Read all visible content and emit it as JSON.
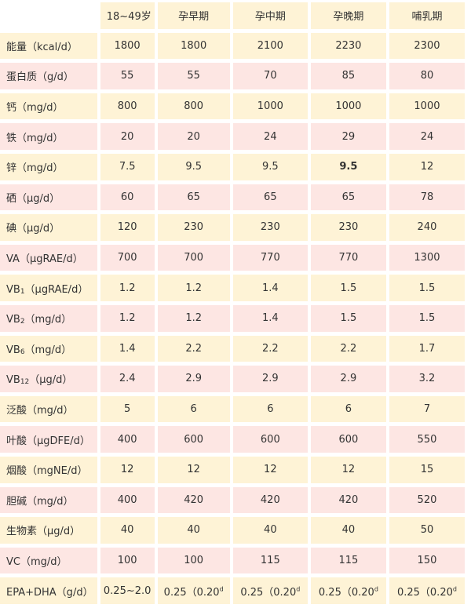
{
  "table": {
    "headers": [
      "",
      "18~49岁",
      "孕早期",
      "孕中期",
      "孕晚期",
      "哺乳期"
    ],
    "rows": [
      {
        "label": "能量（kcal/d）",
        "values": [
          "1800",
          "1800",
          "2100",
          "2230",
          "2300"
        ]
      },
      {
        "label": "蛋白质（g/d）",
        "values": [
          "55",
          "55",
          "70",
          "85",
          "80"
        ]
      },
      {
        "label": "钙（mg/d）",
        "values": [
          "800",
          "800",
          "1000",
          "1000",
          "1000"
        ]
      },
      {
        "label": "铁（mg/d）",
        "values": [
          "20",
          "20",
          "24",
          "29",
          "24"
        ]
      },
      {
        "label": "锌（mg/d）",
        "values": [
          "7.5",
          "9.5",
          "9.5",
          "9.5",
          "12"
        ]
      },
      {
        "label": "硒（μg/d）",
        "values": [
          "60",
          "65",
          "65",
          "65",
          "78"
        ]
      },
      {
        "label": "碘（μg/d）",
        "values": [
          "120",
          "230",
          "230",
          "230",
          "240"
        ]
      },
      {
        "label": "VA（μgRAE/d）",
        "values": [
          "700",
          "700",
          "770",
          "770",
          "1300"
        ]
      },
      {
        "label_main": "VB",
        "label_sub": "1",
        "label_rest": "（μgRAE/d）",
        "values": [
          "1.2",
          "1.2",
          "1.4",
          "1.5",
          "1.5"
        ]
      },
      {
        "label_main": "VB",
        "label_sub": "2",
        "label_rest": "（mg/d）",
        "values": [
          "1.2",
          "1.2",
          "1.4",
          "1.5",
          "1.5"
        ]
      },
      {
        "label_main": "VB",
        "label_sub": "6",
        "label_rest": "（mg/d）",
        "values": [
          "1.4",
          "2.2",
          "2.2",
          "2.2",
          "1.7"
        ]
      },
      {
        "label_main": "VB",
        "label_sub": "12",
        "label_rest": "（μg/d）",
        "values": [
          "2.4",
          "2.9",
          "2.9",
          "2.9",
          "3.2"
        ]
      },
      {
        "label": "泛酸（mg/d）",
        "values": [
          "5",
          "6",
          "6",
          "6",
          "7"
        ]
      },
      {
        "label": "叶酸（μgDFE/d）",
        "values": [
          "400",
          "600",
          "600",
          "600",
          "550"
        ]
      },
      {
        "label": "烟酸（mgNE/d）",
        "values": [
          "12",
          "12",
          "12",
          "12",
          "15"
        ]
      },
      {
        "label": "胆碱（mg/d）",
        "values": [
          "400",
          "420",
          "420",
          "420",
          "520"
        ]
      },
      {
        "label": "生物素（μg/d）",
        "values": [
          "40",
          "40",
          "40",
          "40",
          "50"
        ]
      },
      {
        "label": "VC（mg/d）",
        "values": [
          "100",
          "100",
          "115",
          "115",
          "150"
        ]
      },
      {
        "label": "EPA+DHA（g/d）",
        "values": [
          "0.25~2.0",
          "0.25（0.20",
          "0.25（0.20",
          "0.25（0.20",
          "0.25（0.20"
        ],
        "sups": [
          "",
          "d",
          "d",
          "d",
          "d"
        ]
      }
    ]
  }
}
